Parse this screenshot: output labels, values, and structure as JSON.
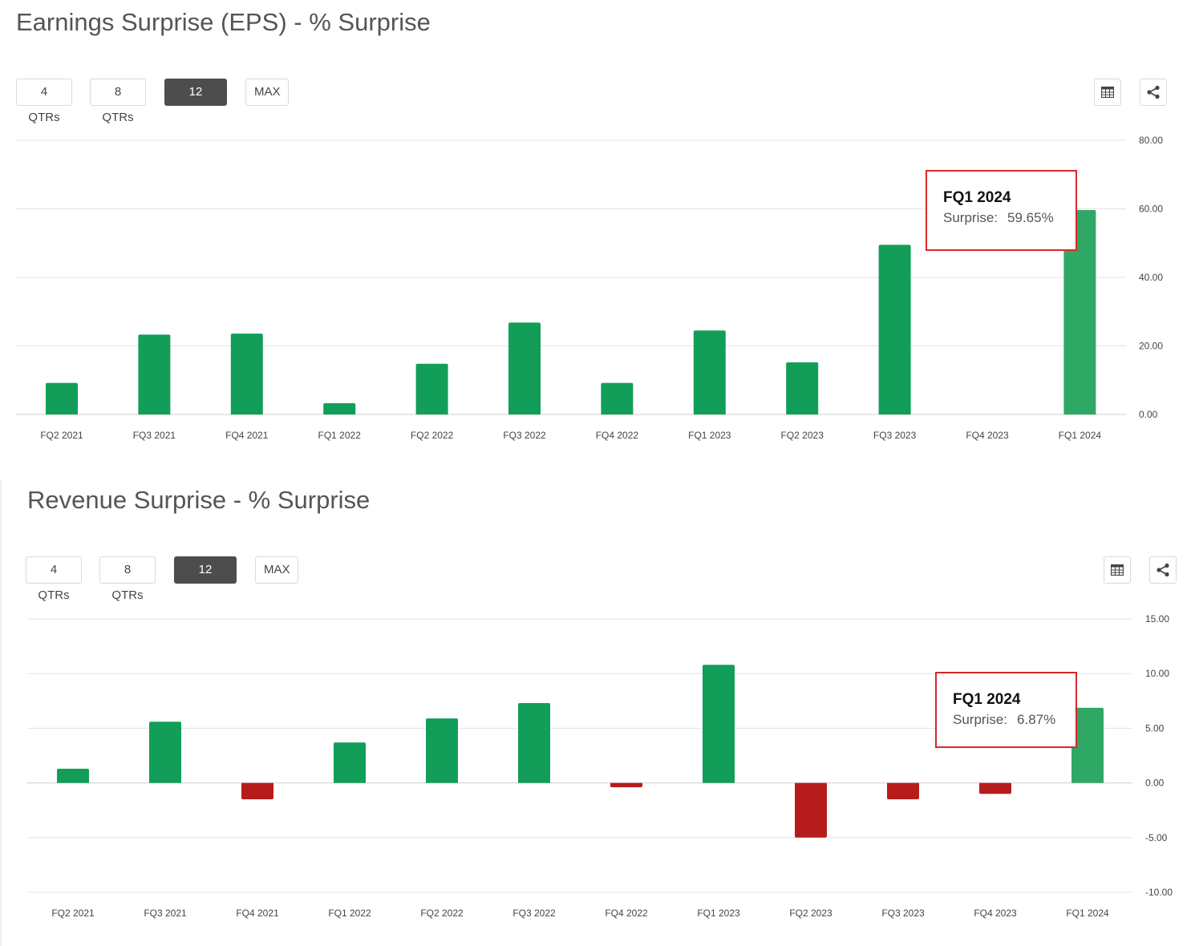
{
  "range_buttons": [
    "4 QTRs",
    "8 QTRs",
    "12 QTRs",
    "MAX"
  ],
  "active_range": "12 QTRs",
  "colors": {
    "positive": "#129e58",
    "negative": "#b71c1c",
    "highlight": "#2fa866",
    "tooltip_border": "#d62828"
  },
  "icons": {
    "table": "table-icon",
    "share": "share-icon"
  },
  "chart_data": [
    {
      "type": "bar",
      "title": "Earnings Surprise (EPS) - % Surprise",
      "categories": [
        "FQ2 2021",
        "FQ3 2021",
        "FQ4 2021",
        "FQ1 2022",
        "FQ2 2022",
        "FQ3 2022",
        "FQ4 2022",
        "FQ1 2023",
        "FQ2 2023",
        "FQ3 2023",
        "FQ4 2023",
        "FQ1 2024"
      ],
      "values": [
        9.2,
        23.3,
        23.6,
        3.3,
        14.8,
        26.8,
        9.2,
        24.5,
        15.2,
        49.5,
        null,
        59.65
      ],
      "yticks": [
        "0.00",
        "20.00",
        "40.00",
        "60.00",
        "80.00"
      ],
      "ylim": [
        0,
        80
      ],
      "grid": true,
      "highlight_index": 11,
      "tooltip": {
        "title": "FQ1 2024",
        "label": "Surprise:",
        "value": "59.65%"
      }
    },
    {
      "type": "bar",
      "title": "Revenue Surprise - % Surprise",
      "categories": [
        "FQ2 2021",
        "FQ3 2021",
        "FQ4 2021",
        "FQ1 2022",
        "FQ2 2022",
        "FQ3 2022",
        "FQ4 2022",
        "FQ1 2023",
        "FQ2 2023",
        "FQ3 2023",
        "FQ4 2023",
        "FQ1 2024"
      ],
      "values": [
        1.3,
        5.6,
        -1.5,
        3.7,
        5.9,
        7.3,
        -0.4,
        10.8,
        -5.0,
        -1.5,
        -1.0,
        6.87
      ],
      "yticks": [
        "-10.00",
        "-5.00",
        "0.00",
        "5.00",
        "10.00",
        "15.00"
      ],
      "ylim": [
        -10,
        15
      ],
      "grid": true,
      "highlight_index": 11,
      "tooltip": {
        "title": "FQ1 2024",
        "label": "Surprise:",
        "value": "6.87%"
      }
    }
  ]
}
